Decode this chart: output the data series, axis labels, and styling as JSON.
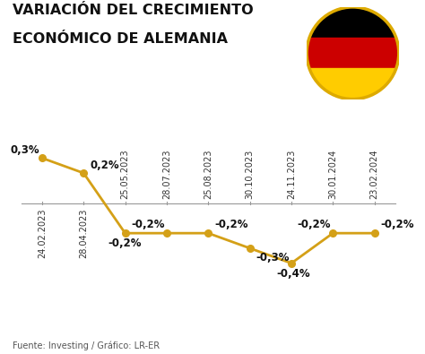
{
  "title_line1": "VARIACIÓN DEL CRECIMIENTO",
  "title_line2": "ECONÓMICO DE ALEMANIA",
  "source": "Fuente: Investing / Gráfico: LR-ER",
  "x_labels_top": [
    "25.05.2023",
    "28.07.2023",
    "25.08.2023",
    "30.10.2023",
    "24.11.2023",
    "30.01.2024",
    "23.02.2024"
  ],
  "x_labels_bottom": [
    "24.02.2023",
    "28.04.2023",
    "25.05.2023",
    "28.07.2023",
    "25.08.2023",
    "30.10.2023",
    "24.11.2023",
    "30.01.2024",
    "23.02.2024"
  ],
  "y_values": [
    0.3,
    0.2,
    -0.2,
    -0.2,
    -0.2,
    -0.3,
    -0.4,
    -0.2,
    -0.2
  ],
  "y_labels": [
    "0,3%",
    "0,2%",
    "-0,2%",
    "-0,2%",
    "-0,2%",
    "-0,3%",
    "-0,4%",
    "-0,2%",
    "-0,2%"
  ],
  "line_color": "#D4A017",
  "marker_color": "#D4A017",
  "background_color": "#FFFFFF",
  "title_color": "#111111",
  "label_color": "#111111",
  "source_color": "#555555",
  "ylim": [
    -0.58,
    0.48
  ],
  "title_fontsize": 11.5,
  "label_fontsize": 8.5,
  "tick_fontsize": 7.0,
  "source_fontsize": 7.0,
  "germany_flag_colors": [
    "#000000",
    "#CC0000",
    "#FFCC00"
  ]
}
